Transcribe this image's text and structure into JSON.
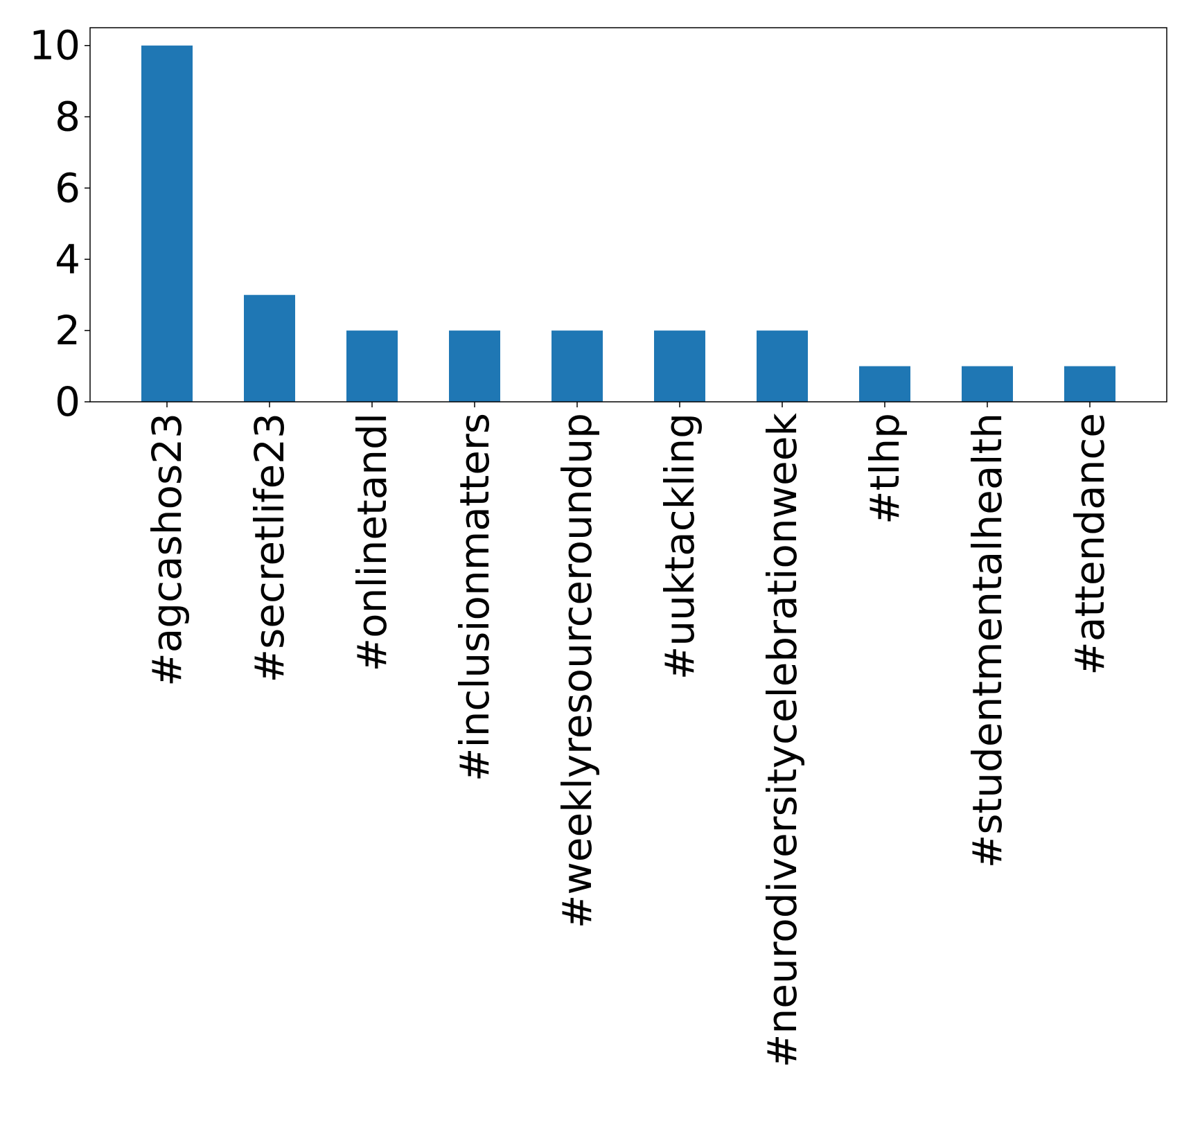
{
  "chart_data": {
    "type": "bar",
    "title": "",
    "xlabel": "",
    "ylabel": "",
    "categories": [
      "#agcashos23",
      "#secretlife23",
      "#onlinetandl",
      "#inclusionmatters",
      "#weeklyresourceroundup",
      "#uuktackling",
      "#neurodiversitycelebrationweek",
      "#tlhp",
      "#studentmentalhealth",
      "#attendance"
    ],
    "values": [
      10,
      3,
      2,
      2,
      2,
      2,
      2,
      1,
      1,
      1
    ],
    "ylim": [
      0,
      10.5
    ],
    "yticks": [
      0,
      2,
      4,
      6,
      8,
      10
    ],
    "grid": false,
    "legend": "none",
    "bar_color": "#1f77b4"
  }
}
